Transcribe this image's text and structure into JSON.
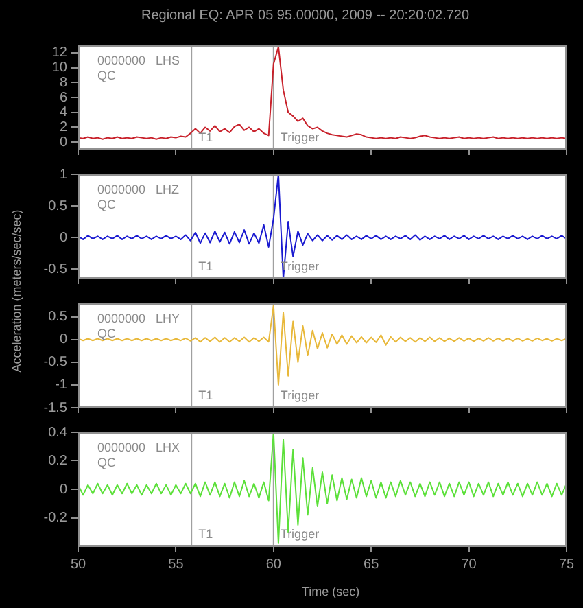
{
  "chart_data": [
    {
      "type": "line",
      "title": "Regional EQ: APR 05 95.00000, 2009 -- 20:20:02.720",
      "ylabel": "Acceleration (meters/sec/sec)",
      "annotations": [
        "0000000   LHS",
        "QC"
      ],
      "x": [
        50,
        50.25,
        50.5,
        50.75,
        51,
        51.25,
        51.5,
        51.75,
        52,
        52.25,
        52.5,
        52.75,
        53,
        53.25,
        53.5,
        53.75,
        54,
        54.25,
        54.5,
        54.75,
        55,
        55.25,
        55.5,
        55.75,
        56,
        56.25,
        56.5,
        56.75,
        57,
        57.25,
        57.5,
        57.75,
        58,
        58.25,
        58.5,
        58.75,
        59,
        59.25,
        59.5,
        59.75,
        60,
        60.25,
        60.5,
        60.75,
        61,
        61.25,
        61.5,
        61.75,
        62,
        62.25,
        62.5,
        62.75,
        63,
        63.25,
        63.5,
        63.75,
        64,
        64.25,
        64.5,
        64.75,
        65,
        65.25,
        65.5,
        65.75,
        66,
        66.25,
        66.5,
        66.75,
        67,
        67.25,
        67.5,
        67.75,
        68,
        68.25,
        68.5,
        68.75,
        69,
        69.25,
        69.5,
        69.75,
        70,
        70.25,
        70.5,
        70.75,
        71,
        71.25,
        71.5,
        71.75,
        72,
        72.25,
        72.5,
        72.75,
        73,
        73.25,
        73.5,
        73.75,
        74,
        74.25,
        74.5,
        74.75,
        75
      ],
      "series": [
        {
          "color": "#c8202a",
          "values": [
            0.6,
            0.5,
            0.7,
            0.5,
            0.6,
            0.4,
            0.6,
            0.5,
            0.7,
            0.5,
            0.6,
            0.5,
            0.7,
            0.6,
            0.5,
            0.6,
            0.4,
            0.6,
            0.5,
            0.7,
            0.6,
            0.8,
            0.7,
            1.2,
            1.8,
            1.2,
            2.0,
            1.5,
            2.2,
            1.4,
            1.8,
            1.3,
            2.1,
            2.4,
            1.6,
            2.0,
            1.4,
            1.8,
            1.2,
            0.9,
            10.5,
            12.8,
            7.0,
            4.0,
            3.5,
            2.8,
            3.2,
            2.2,
            1.8,
            2.0,
            1.5,
            1.2,
            1.0,
            0.9,
            0.8,
            0.7,
            0.9,
            1.1,
            1.0,
            0.7,
            0.6,
            0.5,
            0.6,
            0.5,
            0.6,
            0.5,
            0.7,
            0.6,
            0.5,
            0.6,
            0.8,
            0.9,
            0.7,
            0.6,
            0.5,
            0.6,
            0.5,
            0.6,
            0.7,
            0.5,
            0.6,
            0.5,
            0.6,
            0.5,
            0.6,
            0.7,
            0.5,
            0.6,
            0.5,
            0.6,
            0.5,
            0.6,
            0.5,
            0.6,
            0.5,
            0.6,
            0.5,
            0.6,
            0.5,
            0.6,
            0.5
          ]
        }
      ],
      "xlim": [
        50,
        75
      ],
      "xticks": [
        50,
        55,
        60,
        65,
        70,
        75
      ],
      "ylim": [
        -1,
        13
      ],
      "yticks": [
        0,
        2,
        4,
        6,
        8,
        10,
        12
      ],
      "tick_labels": "y",
      "grid": false,
      "legend": false,
      "marker": "none",
      "line_style": "solid",
      "ref_lines": [
        {
          "axis": "x",
          "value": 55.8,
          "label": "T1"
        },
        {
          "axis": "x",
          "value": 60,
          "label": "Trigger"
        }
      ]
    },
    {
      "type": "line",
      "annotations": [
        "0000000   LHZ",
        "QC"
      ],
      "x": [
        50,
        50.25,
        50.5,
        50.75,
        51,
        51.25,
        51.5,
        51.75,
        52,
        52.25,
        52.5,
        52.75,
        53,
        53.25,
        53.5,
        53.75,
        54,
        54.25,
        54.5,
        54.75,
        55,
        55.25,
        55.5,
        55.75,
        56,
        56.25,
        56.5,
        56.75,
        57,
        57.25,
        57.5,
        57.75,
        58,
        58.25,
        58.5,
        58.75,
        59,
        59.25,
        59.5,
        59.75,
        60,
        60.25,
        60.5,
        60.75,
        61,
        61.25,
        61.5,
        61.75,
        62,
        62.25,
        62.5,
        62.75,
        63,
        63.25,
        63.5,
        63.75,
        64,
        64.25,
        64.5,
        64.75,
        65,
        65.25,
        65.5,
        65.75,
        66,
        66.25,
        66.5,
        66.75,
        67,
        67.25,
        67.5,
        67.75,
        68,
        68.25,
        68.5,
        68.75,
        69,
        69.25,
        69.5,
        69.75,
        70,
        70.25,
        70.5,
        70.75,
        71,
        71.25,
        71.5,
        71.75,
        72,
        72.25,
        72.5,
        72.75,
        73,
        73.25,
        73.5,
        73.75,
        74,
        74.25,
        74.5,
        74.75,
        75
      ],
      "series": [
        {
          "color": "#1a1ad0",
          "values": [
            0.02,
            -0.03,
            0.03,
            -0.02,
            0.02,
            -0.03,
            0.02,
            -0.02,
            0.03,
            -0.03,
            0.02,
            -0.02,
            0.03,
            -0.02,
            0.02,
            -0.03,
            0.02,
            -0.02,
            0.03,
            -0.02,
            0.02,
            -0.03,
            0.04,
            -0.05,
            0.08,
            -0.09,
            0.07,
            -0.08,
            0.1,
            -0.07,
            0.08,
            -0.1,
            0.09,
            -0.08,
            0.12,
            -0.1,
            0.07,
            -0.09,
            0.2,
            -0.15,
            0.3,
            1.0,
            -0.65,
            0.25,
            -0.3,
            0.1,
            -0.12,
            0.06,
            -0.05,
            0.04,
            -0.05,
            0.03,
            -0.04,
            0.03,
            -0.03,
            0.04,
            -0.03,
            0.02,
            -0.03,
            0.03,
            -0.02,
            0.03,
            -0.03,
            0.02,
            -0.03,
            0.02,
            -0.02,
            0.03,
            -0.03,
            0.04,
            -0.04,
            0.02,
            -0.03,
            0.02,
            -0.02,
            0.03,
            -0.03,
            0.02,
            -0.02,
            0.03,
            -0.03,
            0.02,
            -0.02,
            0.03,
            -0.02,
            0.02,
            -0.03,
            0.02,
            -0.02,
            0.03,
            -0.02,
            0.02,
            -0.03,
            0.02,
            -0.02,
            0.03,
            -0.02,
            0.02,
            -0.02,
            0.03,
            -0.02
          ]
        }
      ],
      "xlim": [
        50,
        75
      ],
      "xticks": [
        50,
        55,
        60,
        65,
        70,
        75
      ],
      "ylim": [
        -0.65,
        1
      ],
      "yticks": [
        -0.5,
        0,
        0.5,
        1
      ],
      "tick_labels": "y",
      "grid": false,
      "legend": false,
      "marker": "none",
      "line_style": "solid",
      "ref_lines": [
        {
          "axis": "x",
          "value": 55.8,
          "label": "T1"
        },
        {
          "axis": "x",
          "value": 60,
          "label": "Trigger"
        }
      ]
    },
    {
      "type": "line",
      "annotations": [
        "0000000   LHY",
        "QC"
      ],
      "x": [
        50,
        50.25,
        50.5,
        50.75,
        51,
        51.25,
        51.5,
        51.75,
        52,
        52.25,
        52.5,
        52.75,
        53,
        53.25,
        53.5,
        53.75,
        54,
        54.25,
        54.5,
        54.75,
        55,
        55.25,
        55.5,
        55.75,
        56,
        56.25,
        56.5,
        56.75,
        57,
        57.25,
        57.5,
        57.75,
        58,
        58.25,
        58.5,
        58.75,
        59,
        59.25,
        59.5,
        59.75,
        60,
        60.25,
        60.5,
        60.75,
        61,
        61.25,
        61.5,
        61.75,
        62,
        62.25,
        62.5,
        62.75,
        63,
        63.25,
        63.5,
        63.75,
        64,
        64.25,
        64.5,
        64.75,
        65,
        65.25,
        65.5,
        65.75,
        66,
        66.25,
        66.5,
        66.75,
        67,
        67.25,
        67.5,
        67.75,
        68,
        68.25,
        68.5,
        68.75,
        69,
        69.25,
        69.5,
        69.75,
        70,
        70.25,
        70.5,
        70.75,
        71,
        71.25,
        71.5,
        71.75,
        72,
        72.25,
        72.5,
        72.75,
        73,
        73.25,
        73.5,
        73.75,
        74,
        74.25,
        74.5,
        74.75,
        75
      ],
      "series": [
        {
          "color": "#e8b83a",
          "values": [
            0.02,
            -0.02,
            0.02,
            -0.02,
            0.02,
            -0.02,
            0.02,
            -0.02,
            0.02,
            -0.02,
            0.02,
            -0.02,
            0.02,
            -0.02,
            0.02,
            -0.02,
            0.02,
            -0.02,
            0.02,
            -0.02,
            0.02,
            -0.02,
            0.03,
            -0.03,
            0.04,
            -0.05,
            0.04,
            -0.04,
            0.05,
            -0.05,
            0.04,
            -0.05,
            0.04,
            -0.04,
            0.05,
            -0.05,
            0.04,
            -0.04,
            0.05,
            -0.05,
            0.75,
            -1.0,
            0.6,
            -0.8,
            0.4,
            -0.5,
            0.3,
            -0.35,
            0.2,
            -0.2,
            0.15,
            -0.18,
            0.12,
            -0.1,
            0.1,
            -0.1,
            0.08,
            -0.07,
            0.06,
            -0.07,
            0.05,
            -0.06,
            0.1,
            -0.12,
            0.06,
            -0.05,
            0.05,
            -0.04,
            0.04,
            -0.05,
            0.04,
            -0.04,
            0.05,
            -0.04,
            0.04,
            -0.04,
            0.03,
            -0.04,
            0.04,
            -0.03,
            0.03,
            -0.04,
            0.03,
            -0.03,
            0.04,
            -0.03,
            0.03,
            -0.03,
            0.03,
            -0.03,
            0.03,
            -0.03,
            0.02,
            -0.03,
            0.03,
            -0.02,
            0.02,
            -0.03,
            0.02,
            -0.02,
            0.02
          ]
        }
      ],
      "xlim": [
        50,
        75
      ],
      "xticks": [
        50,
        55,
        60,
        65,
        70,
        75
      ],
      "ylim": [
        -1.5,
        0.8
      ],
      "yticks": [
        -1.5,
        -1,
        -0.5,
        0,
        0.5
      ],
      "tick_labels": "y",
      "grid": false,
      "legend": false,
      "marker": "none",
      "line_style": "solid",
      "ref_lines": [
        {
          "axis": "x",
          "value": 55.8,
          "label": "T1"
        },
        {
          "axis": "x",
          "value": 60,
          "label": "Trigger"
        }
      ]
    },
    {
      "type": "line",
      "xlabel": "Time (sec)",
      "annotations": [
        "0000000   LHX",
        "QC"
      ],
      "x": [
        50,
        50.25,
        50.5,
        50.75,
        51,
        51.25,
        51.5,
        51.75,
        52,
        52.25,
        52.5,
        52.75,
        53,
        53.25,
        53.5,
        53.75,
        54,
        54.25,
        54.5,
        54.75,
        55,
        55.25,
        55.5,
        55.75,
        56,
        56.25,
        56.5,
        56.75,
        57,
        57.25,
        57.5,
        57.75,
        58,
        58.25,
        58.5,
        58.75,
        59,
        59.25,
        59.5,
        59.75,
        60,
        60.25,
        60.5,
        60.75,
        61,
        61.25,
        61.5,
        61.75,
        62,
        62.25,
        62.5,
        62.75,
        63,
        63.25,
        63.5,
        63.75,
        64,
        64.25,
        64.5,
        64.75,
        65,
        65.25,
        65.5,
        65.75,
        66,
        66.25,
        66.5,
        66.75,
        67,
        67.25,
        67.5,
        67.75,
        68,
        68.25,
        68.5,
        68.75,
        69,
        69.25,
        69.5,
        69.75,
        70,
        70.25,
        70.5,
        70.75,
        71,
        71.25,
        71.5,
        71.75,
        72,
        72.25,
        72.5,
        72.75,
        73,
        73.25,
        73.5,
        73.75,
        74,
        74.25,
        74.5,
        74.75,
        75
      ],
      "series": [
        {
          "color": "#5ce03a",
          "values": [
            0.03,
            -0.04,
            0.03,
            -0.03,
            0.04,
            -0.03,
            0.03,
            -0.04,
            0.03,
            -0.03,
            0.04,
            -0.03,
            0.03,
            -0.04,
            0.03,
            -0.03,
            0.04,
            -0.03,
            0.03,
            -0.04,
            0.03,
            -0.03,
            0.04,
            -0.03,
            0.04,
            -0.05,
            0.05,
            -0.04,
            0.05,
            -0.05,
            0.04,
            -0.06,
            0.05,
            -0.05,
            0.06,
            -0.05,
            0.04,
            -0.06,
            0.05,
            -0.08,
            0.4,
            -0.38,
            0.35,
            -0.3,
            0.28,
            -0.25,
            0.22,
            -0.18,
            0.15,
            -0.12,
            0.12,
            -0.1,
            0.1,
            -0.08,
            0.08,
            -0.07,
            0.07,
            -0.06,
            0.08,
            -0.05,
            0.06,
            -0.06,
            0.05,
            -0.06,
            0.05,
            -0.05,
            0.06,
            -0.04,
            0.05,
            -0.05,
            0.04,
            -0.05,
            0.05,
            -0.04,
            0.05,
            -0.05,
            0.04,
            -0.05,
            0.05,
            -0.04,
            0.05,
            -0.05,
            0.04,
            -0.04,
            0.05,
            -0.05,
            0.04,
            -0.04,
            0.05,
            -0.04,
            0.04,
            -0.05,
            0.04,
            -0.04,
            0.05,
            -0.04,
            0.04,
            -0.05,
            0.04,
            -0.04,
            0.04
          ]
        }
      ],
      "xlim": [
        50,
        75
      ],
      "xticks": [
        50,
        55,
        60,
        65,
        70,
        75
      ],
      "ylim": [
        -0.4,
        0.4
      ],
      "yticks": [
        -0.2,
        0,
        0.2,
        0.4
      ],
      "grid": false,
      "legend": false,
      "marker": "none",
      "line_style": "solid",
      "ref_lines": [
        {
          "axis": "x",
          "value": 55.8,
          "label": "T1"
        },
        {
          "axis": "x",
          "value": 60,
          "label": "Trigger"
        }
      ]
    }
  ]
}
